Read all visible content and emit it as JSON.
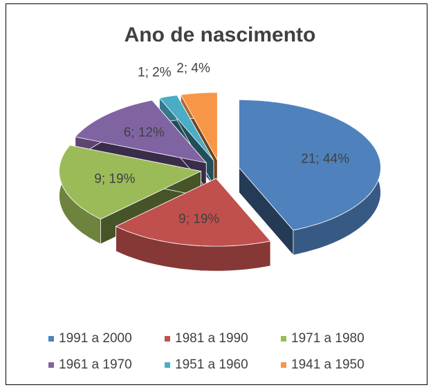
{
  "chart_data": {
    "type": "pie",
    "title": "Ano de nascimento",
    "categories": [
      "1991 a 2000",
      "1981 a 1990",
      "1971 a 1980",
      "1961 a 1970",
      "1951 a 1960",
      "1941 a 1950"
    ],
    "values": [
      21,
      9,
      9,
      6,
      1,
      2
    ],
    "value_labels": [
      "21; 44%",
      "9; 19%",
      "9; 19%",
      "6; 12%",
      "1; 2%",
      "2; 4%"
    ],
    "colors": [
      "#4f81bd",
      "#c0504d",
      "#9bbb59",
      "#8064a2",
      "#4bacc6",
      "#f79646"
    ],
    "legend": "bottom"
  }
}
